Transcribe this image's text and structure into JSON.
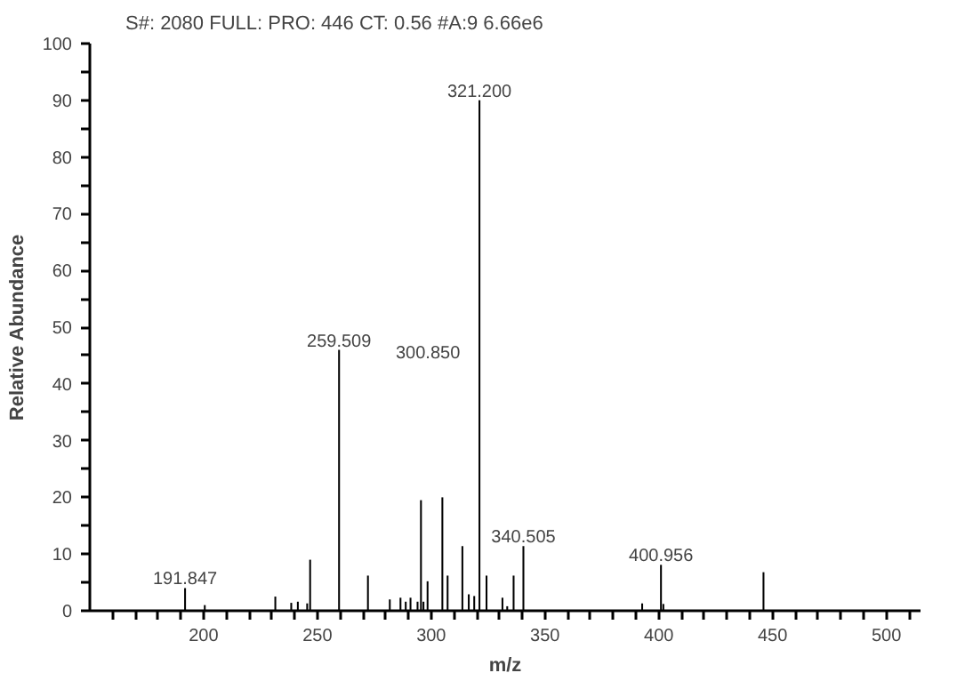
{
  "chart_data": {
    "type": "bar",
    "title": "S#: 2080  FULL: PRO: 446  CT: 0.56  #A:9     6.66e6",
    "xlabel": "m/z",
    "ylabel": "Relative Abundance",
    "x": [
      191.847,
      200.5,
      231.5,
      238.5,
      241.4,
      245.5,
      246.8,
      259.509,
      272.2,
      281.8,
      286.5,
      288.8,
      290.9,
      294.0,
      295.5,
      296.6,
      298.4,
      304.9,
      307.2,
      313.7,
      316.5,
      318.9,
      321.2,
      324.3,
      331.3,
      333.4,
      336.2,
      340.505,
      392.7,
      400.956,
      402.0,
      446.0
    ],
    "values": [
      4,
      1,
      2.5,
      1.4,
      1.6,
      1.3,
      9,
      46,
      6.2,
      2,
      2.3,
      1.6,
      2.3,
      1.6,
      19.5,
      1.6,
      5.2,
      20,
      6.2,
      11.4,
      2.9,
      2.6,
      90,
      6.2,
      2.3,
      0.8,
      6.2,
      11.4,
      1.3,
      8.1,
      1.2,
      6.8
    ],
    "color": "#000000",
    "annotations": [
      {
        "text": "191.847",
        "x": 191.847,
        "y": 4
      },
      {
        "text": "259.509",
        "x": 259.509,
        "y": 46
      },
      "300.850",
      {
        "text": "321.200",
        "x": 321.2,
        "y": 90
      },
      {
        "text": "340.505",
        "x": 340.505,
        "y": 11.4
      },
      {
        "text": "400.956",
        "x": 400.956,
        "y": 8.1
      }
    ],
    "xlim": [
      150,
      515
    ],
    "ylim": [
      0,
      100
    ],
    "xticks": [
      {
        "value": 160,
        "label": null
      },
      {
        "value": 170,
        "label": null
      },
      {
        "value": 180,
        "label": null
      },
      {
        "value": 190,
        "label": null
      },
      200,
      {
        "value": 210,
        "label": null
      },
      {
        "value": 220,
        "label": null
      },
      {
        "value": 230,
        "label": null
      },
      {
        "value": 240,
        "label": null
      },
      250,
      {
        "value": 260,
        "label": null
      },
      {
        "value": 270,
        "label": null
      },
      {
        "value": 280,
        "label": null
      },
      {
        "value": 290,
        "label": null
      },
      300,
      {
        "value": 310,
        "label": null
      },
      {
        "value": 320,
        "label": null
      },
      {
        "value": 330,
        "label": null
      },
      {
        "value": 340,
        "label": null
      },
      350,
      {
        "value": 360,
        "label": null
      },
      {
        "value": 370,
        "label": null
      },
      {
        "value": 380,
        "label": null
      },
      {
        "value": 390,
        "label": null
      },
      400,
      {
        "value": 410,
        "label": null
      },
      {
        "value": 420,
        "label": null
      },
      {
        "value": 430,
        "label": null
      },
      {
        "value": 440,
        "label": null
      },
      450,
      {
        "value": 460,
        "label": null
      },
      {
        "value": 470,
        "label": null
      },
      {
        "value": 480,
        "label": null
      },
      {
        "value": 490,
        "label": null
      },
      500,
      {
        "value": 510,
        "label": null
      }
    ],
    "yticks": [
      0,
      {
        "value": 5,
        "label": null
      },
      10,
      {
        "value": 15,
        "label": null
      },
      20,
      {
        "value": 25,
        "label": null
      },
      30,
      {
        "value": 35,
        "label": null
      },
      40,
      {
        "value": 45,
        "label": null
      },
      50,
      {
        "value": 55,
        "label": null
      },
      60,
      {
        "value": 65,
        "label": null
      },
      70,
      {
        "value": 75,
        "label": null
      },
      80,
      {
        "value": 85,
        "label": null
      },
      90,
      {
        "value": 95,
        "label": null
      },
      100
    ],
    "grid": false
  }
}
